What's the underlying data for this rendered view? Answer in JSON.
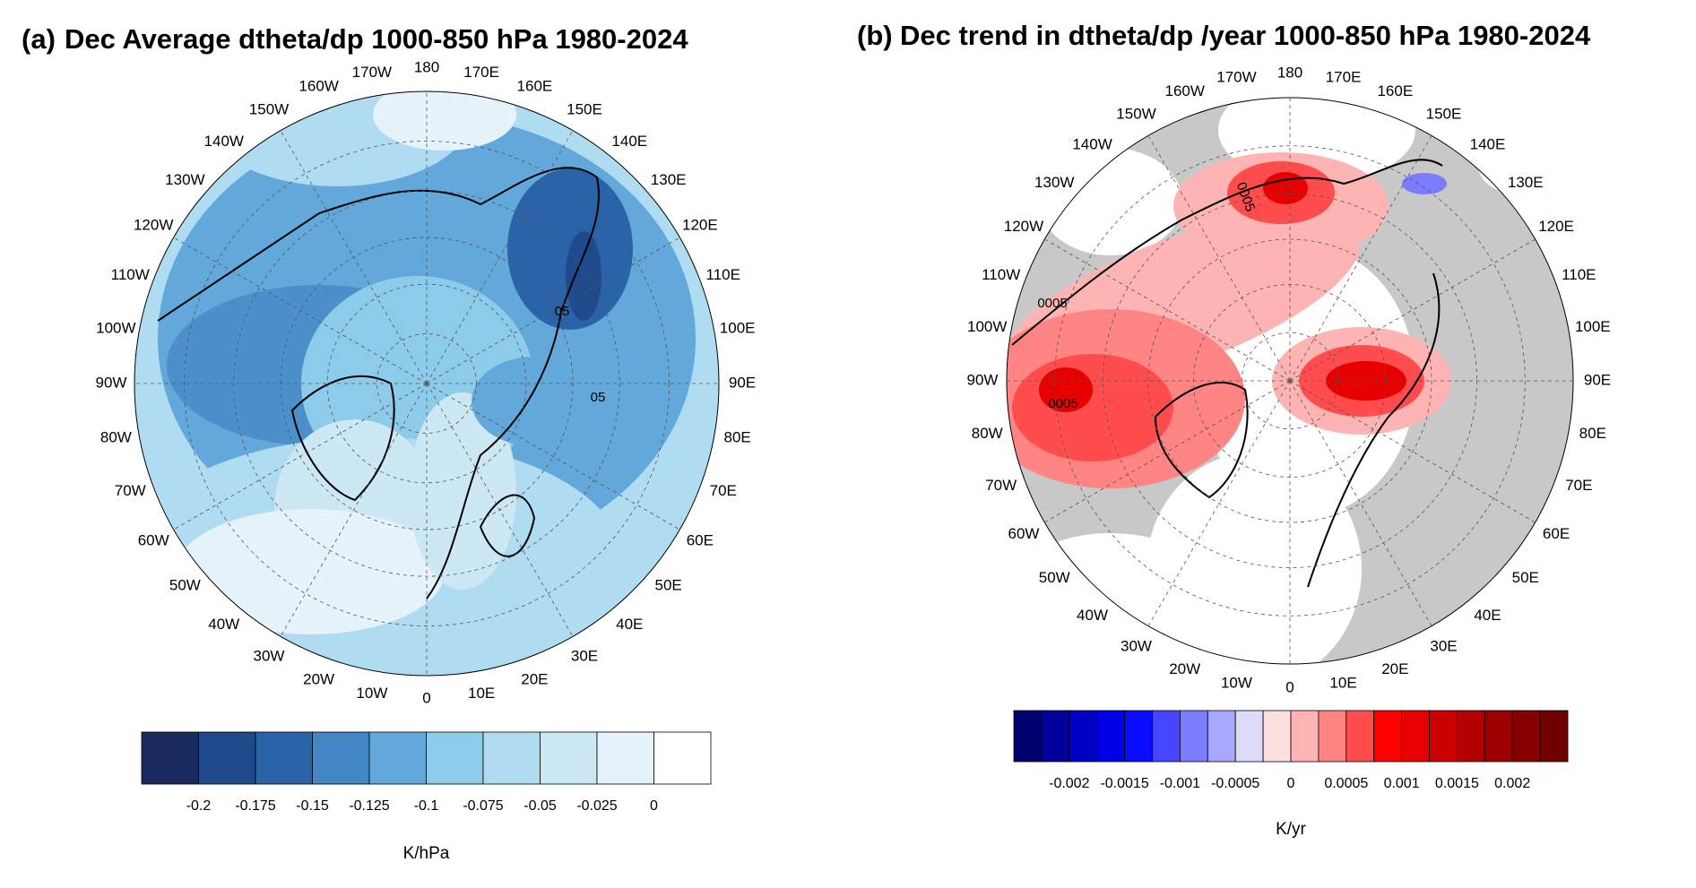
{
  "panels": [
    {
      "label": "(a)",
      "title": "Dec Average dtheta/dp 1000-850 hPa 1980-2024",
      "longitude_labels": [
        "180",
        "170E",
        "160E",
        "150E",
        "140E",
        "130E",
        "120E",
        "110E",
        "100E",
        "90E",
        "80E",
        "70E",
        "60E",
        "50E",
        "40E",
        "30E",
        "20E",
        "10E",
        "0",
        "10W",
        "20W",
        "30W",
        "40W",
        "50W",
        "60W",
        "70W",
        "80W",
        "90W",
        "100W",
        "110W",
        "120W",
        "130W",
        "140W",
        "150W",
        "160W",
        "170W"
      ],
      "contour_labels": [
        "05",
        "05"
      ],
      "colorbar": {
        "colors": [
          "#1b2a5e",
          "#1f4a8c",
          "#2a63a8",
          "#4386c4",
          "#63a8da",
          "#8ccbe9",
          "#b0dcf1",
          "#cce8f5",
          "#e6f3fb",
          "#ffffff"
        ],
        "tick_labels": [
          "-0.2",
          "-0.175",
          "-0.15",
          "-0.125",
          "-0.1",
          "-0.075",
          "-0.05",
          "-0.025",
          "0"
        ],
        "units": "K/hPa"
      }
    },
    {
      "label": "(b)",
      "title": "Dec trend in dtheta/dp /year 1000-850 hPa 1980-2024",
      "longitude_labels": [
        "180",
        "170E",
        "160E",
        "150E",
        "140E",
        "130E",
        "120E",
        "110E",
        "100E",
        "90E",
        "80E",
        "70E",
        "60E",
        "50E",
        "40E",
        "30E",
        "20E",
        "10E",
        "0",
        "10W",
        "20W",
        "30W",
        "40W",
        "50W",
        "60W",
        "70W",
        "80W",
        "90W",
        "100W",
        "110W",
        "120W",
        "130W",
        "140W",
        "150W",
        "160W",
        "170W"
      ],
      "contour_labels": [
        "0005",
        "0005",
        "0005"
      ],
      "colorbar": {
        "colors": [
          "#00006e",
          "#00009a",
          "#0000c4",
          "#0000e6",
          "#0a0aff",
          "#4646ff",
          "#7c7cff",
          "#a8a8ff",
          "#dcdcf8",
          "#ffe0e0",
          "#ffb4b4",
          "#ff8484",
          "#ff4c4c",
          "#ff0000",
          "#e60000",
          "#cc0000",
          "#b40000",
          "#9c0000",
          "#860000",
          "#700000"
        ],
        "tick_labels": [
          "-0.002",
          "-0.0015",
          "-0.001",
          "-0.0005",
          "0",
          "0.0005",
          "0.001",
          "0.0015",
          "0.002"
        ],
        "units": "K/yr"
      }
    }
  ]
}
